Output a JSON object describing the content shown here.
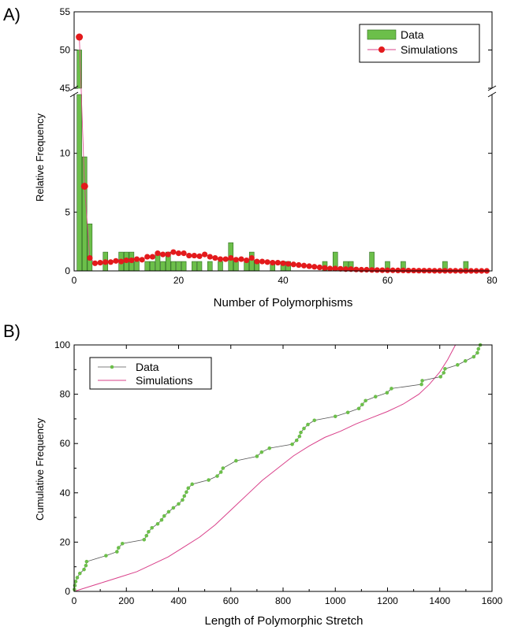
{
  "panel_labels": {
    "a": "A)",
    "b": "B)"
  },
  "chart_data": [
    {
      "type": "bar",
      "panel": "A)",
      "xlabel": "Number of Polymorphisms",
      "ylabel": "Relative Frequency",
      "xlim": [
        0,
        80
      ],
      "ylim_lower": [
        0,
        15
      ],
      "ylim_upper": [
        45,
        55
      ],
      "axis_break": true,
      "grid": false,
      "legend_position": "top-right",
      "xticks": [
        "0",
        "20",
        "40",
        "60",
        "80"
      ],
      "yticks_lower": [
        "0",
        "5",
        "10"
      ],
      "yticks_upper": [
        "45",
        "50",
        "55"
      ],
      "series": [
        {
          "name": "Data",
          "kind": "bar",
          "color": "#6cbf4a",
          "points": [
            [
              1,
              50
            ],
            [
              2,
              9.7
            ],
            [
              3,
              4
            ],
            [
              6,
              1.6
            ],
            [
              9,
              1.6
            ],
            [
              10,
              1.6
            ],
            [
              11,
              1.6
            ],
            [
              12,
              0.8
            ],
            [
              14,
              0.8
            ],
            [
              15,
              0.8
            ],
            [
              16,
              1.6
            ],
            [
              17,
              0.8
            ],
            [
              18,
              1.6
            ],
            [
              19,
              0.8
            ],
            [
              20,
              0.8
            ],
            [
              21,
              0.8
            ],
            [
              23,
              0.8
            ],
            [
              24,
              0.8
            ],
            [
              26,
              0.8
            ],
            [
              28,
              0.8
            ],
            [
              30,
              2.4
            ],
            [
              31,
              0.8
            ],
            [
              33,
              0.8
            ],
            [
              34,
              1.6
            ],
            [
              35,
              0.8
            ],
            [
              38,
              0.8
            ],
            [
              40,
              0.8
            ],
            [
              41,
              0.8
            ],
            [
              48,
              0.8
            ],
            [
              50,
              1.6
            ],
            [
              52,
              0.8
            ],
            [
              53,
              0.8
            ],
            [
              57,
              1.6
            ],
            [
              60,
              0.8
            ],
            [
              63,
              0.8
            ],
            [
              71,
              0.8
            ],
            [
              75,
              0.8
            ]
          ]
        },
        {
          "name": "Simulations",
          "kind": "line-marker",
          "color": "#e31a1c",
          "points": [
            [
              1,
              51.7
            ],
            [
              2,
              7.2
            ],
            [
              3,
              1.1
            ],
            [
              4,
              0.65
            ],
            [
              5,
              0.7
            ],
            [
              6,
              0.75
            ],
            [
              7,
              0.75
            ],
            [
              8,
              0.85
            ],
            [
              9,
              0.8
            ],
            [
              10,
              0.9
            ],
            [
              11,
              0.9
            ],
            [
              12,
              1.0
            ],
            [
              13,
              0.95
            ],
            [
              14,
              1.2
            ],
            [
              15,
              1.2
            ],
            [
              16,
              1.5
            ],
            [
              17,
              1.4
            ],
            [
              18,
              1.4
            ],
            [
              19,
              1.6
            ],
            [
              20,
              1.5
            ],
            [
              21,
              1.5
            ],
            [
              22,
              1.3
            ],
            [
              23,
              1.3
            ],
            [
              24,
              1.25
            ],
            [
              25,
              1.4
            ],
            [
              26,
              1.2
            ],
            [
              27,
              1.1
            ],
            [
              28,
              1.0
            ],
            [
              29,
              1.0
            ],
            [
              30,
              1.1
            ],
            [
              31,
              0.95
            ],
            [
              32,
              1.0
            ],
            [
              33,
              0.9
            ],
            [
              34,
              1.1
            ],
            [
              35,
              0.8
            ],
            [
              36,
              0.8
            ],
            [
              37,
              0.75
            ],
            [
              38,
              0.7
            ],
            [
              39,
              0.7
            ],
            [
              40,
              0.65
            ],
            [
              41,
              0.6
            ],
            [
              42,
              0.55
            ],
            [
              43,
              0.5
            ],
            [
              44,
              0.45
            ],
            [
              45,
              0.4
            ],
            [
              46,
              0.35
            ],
            [
              47,
              0.3
            ],
            [
              48,
              0.25
            ],
            [
              49,
              0.2
            ],
            [
              50,
              0.2
            ],
            [
              51,
              0.18
            ],
            [
              52,
              0.15
            ],
            [
              53,
              0.15
            ],
            [
              54,
              0.12
            ],
            [
              55,
              0.1
            ],
            [
              56,
              0.1
            ],
            [
              57,
              0.08
            ],
            [
              58,
              0.07
            ],
            [
              59,
              0.06
            ],
            [
              60,
              0.05
            ],
            [
              61,
              0.05
            ],
            [
              62,
              0.04
            ],
            [
              63,
              0.04
            ],
            [
              64,
              0.03
            ],
            [
              65,
              0.03
            ],
            [
              66,
              0.02
            ],
            [
              67,
              0.02
            ],
            [
              68,
              0.02
            ],
            [
              69,
              0.01
            ],
            [
              70,
              0.01
            ],
            [
              71,
              0.01
            ],
            [
              72,
              0.01
            ],
            [
              73,
              0.01
            ],
            [
              74,
              0
            ],
            [
              75,
              0
            ],
            [
              76,
              0
            ],
            [
              77,
              0
            ],
            [
              78,
              0
            ],
            [
              79,
              0
            ]
          ]
        }
      ]
    },
    {
      "type": "line",
      "panel": "B)",
      "xlabel": "Length of Polymorphic Stretch",
      "ylabel": "Cumulative Frequency",
      "xlim": [
        0,
        1600
      ],
      "ylim": [
        0,
        100
      ],
      "grid": false,
      "legend_position": "top-left",
      "xticks": [
        "0",
        "200",
        "400",
        "600",
        "800",
        "1000",
        "1200",
        "1400",
        "1600"
      ],
      "yticks": [
        "0",
        "20",
        "40",
        "60",
        "80",
        "100"
      ],
      "series": [
        {
          "name": "Data",
          "kind": "line-marker",
          "color": "#6cbf4a",
          "line_color": "#555555",
          "points": [
            [
              1,
              0.8
            ],
            [
              3,
              2.4
            ],
            [
              6,
              4.0
            ],
            [
              12,
              5.6
            ],
            [
              22,
              7.3
            ],
            [
              38,
              8.9
            ],
            [
              45,
              10.5
            ],
            [
              48,
              12.1
            ],
            [
              122,
              14.5
            ],
            [
              164,
              16.1
            ],
            [
              170,
              17.7
            ],
            [
              185,
              19.4
            ],
            [
              268,
              21.0
            ],
            [
              277,
              22.6
            ],
            [
              285,
              24.2
            ],
            [
              298,
              25.8
            ],
            [
              320,
              27.4
            ],
            [
              335,
              29.0
            ],
            [
              345,
              30.6
            ],
            [
              362,
              32.3
            ],
            [
              380,
              33.9
            ],
            [
              400,
              35.5
            ],
            [
              415,
              37.1
            ],
            [
              422,
              38.7
            ],
            [
              430,
              40.3
            ],
            [
              437,
              41.9
            ],
            [
              452,
              43.5
            ],
            [
              515,
              45.2
            ],
            [
              548,
              46.8
            ],
            [
              562,
              48.4
            ],
            [
              570,
              50.0
            ],
            [
              620,
              53.0
            ],
            [
              700,
              54.8
            ],
            [
              718,
              56.5
            ],
            [
              748,
              58.1
            ],
            [
              835,
              59.7
            ],
            [
              852,
              61.3
            ],
            [
              863,
              62.9
            ],
            [
              868,
              64.5
            ],
            [
              880,
              66.1
            ],
            [
              895,
              67.7
            ],
            [
              920,
              69.4
            ],
            [
              1000,
              71.0
            ],
            [
              1048,
              72.6
            ],
            [
              1090,
              74.2
            ],
            [
              1103,
              75.8
            ],
            [
              1116,
              77.4
            ],
            [
              1154,
              79.0
            ],
            [
              1198,
              80.6
            ],
            [
              1215,
              82.3
            ],
            [
              1330,
              84.0
            ],
            [
              1333,
              85.5
            ],
            [
              1403,
              87.1
            ],
            [
              1415,
              88.7
            ],
            [
              1420,
              90.3
            ],
            [
              1468,
              91.9
            ],
            [
              1498,
              93.5
            ],
            [
              1530,
              95.2
            ],
            [
              1544,
              96.8
            ],
            [
              1548,
              98.4
            ],
            [
              1555,
              100
            ]
          ]
        },
        {
          "name": "Simulations",
          "kind": "line",
          "color": "#d9408a",
          "points": [
            [
              0,
              0
            ],
            [
              60,
              2
            ],
            [
              120,
              4
            ],
            [
              180,
              6
            ],
            [
              240,
              8
            ],
            [
              300,
              11
            ],
            [
              360,
              14
            ],
            [
              420,
              18
            ],
            [
              480,
              22
            ],
            [
              540,
              27
            ],
            [
              600,
              33
            ],
            [
              660,
              39
            ],
            [
              720,
              45
            ],
            [
              780,
              50
            ],
            [
              840,
              55
            ],
            [
              900,
              59
            ],
            [
              960,
              62.5
            ],
            [
              1020,
              65
            ],
            [
              1080,
              68
            ],
            [
              1140,
              70.5
            ],
            [
              1200,
              73
            ],
            [
              1260,
              76
            ],
            [
              1320,
              80
            ],
            [
              1360,
              84
            ],
            [
              1400,
              89
            ],
            [
              1430,
              94
            ],
            [
              1450,
              98
            ],
            [
              1460,
              100
            ]
          ]
        }
      ]
    }
  ]
}
